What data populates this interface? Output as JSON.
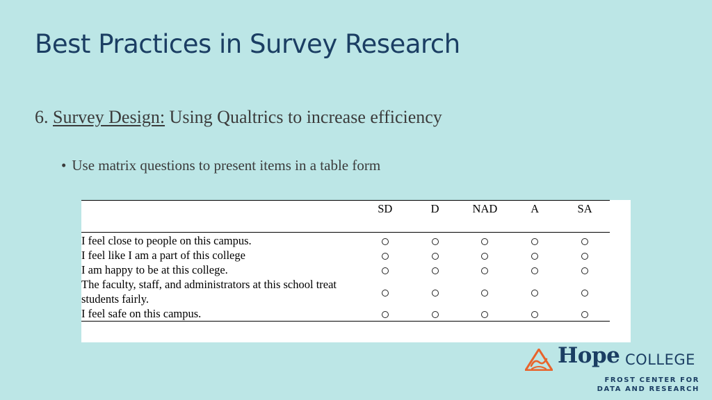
{
  "slide": {
    "title": "Best Practices in Survey Research",
    "heading_number": "6.",
    "heading_underlined": "Survey Design:",
    "heading_rest": "Using Qualtrics to increase efficiency",
    "bullet_glyph": "•",
    "bullet_text": "Use matrix questions to present items in a table form"
  },
  "matrix": {
    "columns": [
      "SD",
      "D",
      "NAD",
      "A",
      "SA"
    ],
    "rows": [
      "I feel close to people on this campus.",
      "I feel like I am a part of this college",
      "I am happy to be at this college.",
      "The faculty, staff, and administrators at this school treat students fairly.",
      "I feel safe on this campus."
    ]
  },
  "logo": {
    "hope": "Hope",
    "college": "COLLEGE",
    "line1": "FROST CENTER FOR",
    "line2": "DATA AND RESEARCH",
    "colors": {
      "navy": "#1b3e63",
      "orange": "#e8632b"
    }
  }
}
